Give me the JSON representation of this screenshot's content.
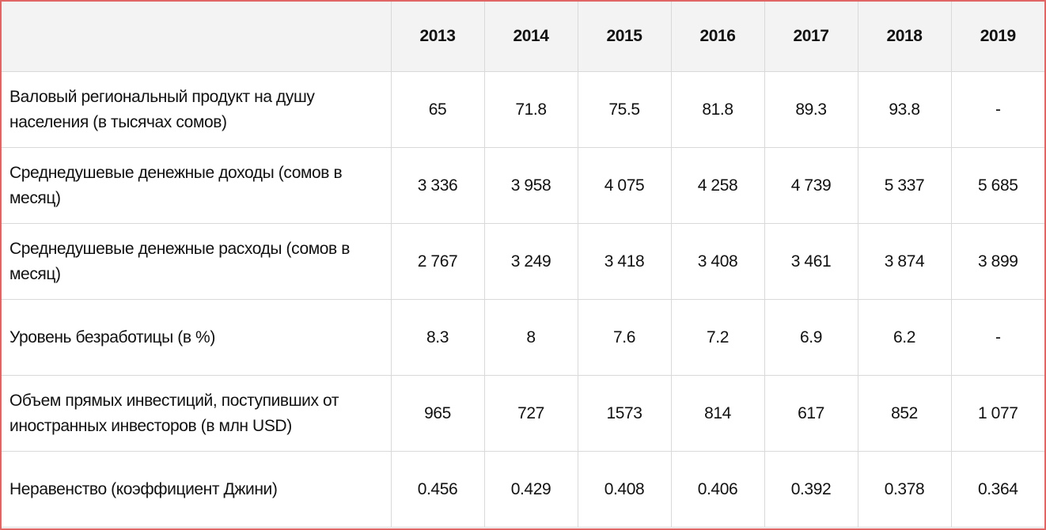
{
  "table": {
    "header": [
      "2013",
      "2014",
      "2015",
      "2016",
      "2017",
      "2018",
      "2019"
    ],
    "rows": [
      [
        "Валовый региональный продукт на душу населения (в тысячах сомов)",
        "65",
        "71.8",
        "75.5",
        "81.8",
        "89.3",
        "93.8",
        "-"
      ],
      [
        "Среднедушевые денежные доходы (сомов в месяц)",
        "3 336",
        "3 958",
        "4 075",
        "4 258",
        "4 739",
        "5 337",
        "5 685"
      ],
      [
        "Среднедушевые денежные расходы (сомов в месяц)",
        "2 767",
        "3 249",
        "3 418",
        "3 408",
        "3 461",
        "3 874",
        "3 899"
      ],
      [
        "Уровень безработицы (в %)",
        "8.3",
        "8",
        "7.6",
        "7.2",
        "6.9",
        "6.2",
        "-"
      ],
      [
        "Объем прямых инвестиций, поступивших от иностранных инвесторов (в млн USD)",
        "965",
        "727",
        "1573",
        "814",
        "617",
        "852",
        "1 077"
      ],
      [
        "Неравенство (коэффициент Джини)",
        "0.456",
        "0.429",
        "0.408",
        "0.406",
        "0.392",
        "0.378",
        "0.364"
      ]
    ]
  }
}
